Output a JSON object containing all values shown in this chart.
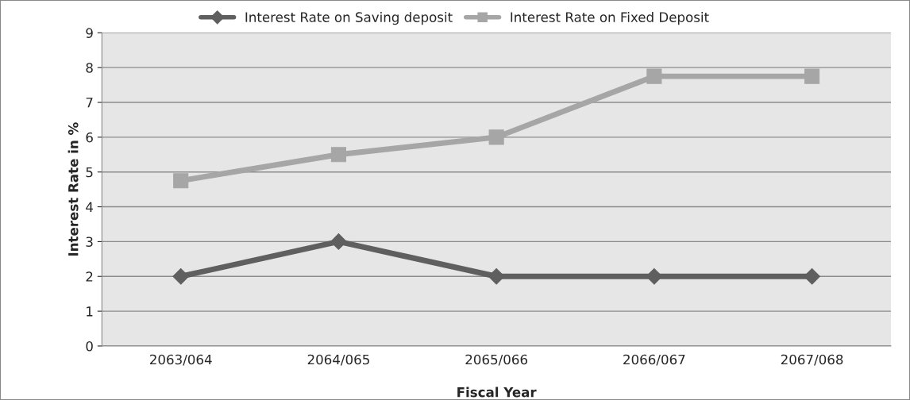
{
  "chart_data": {
    "type": "line",
    "xlabel": "Fiscal Year",
    "ylabel": "Interest Rate in %",
    "categories": [
      "2063/064",
      "2064/065",
      "2065/066",
      "2066/067",
      "2067/068"
    ],
    "series": [
      {
        "name": "Interest Rate on Saving deposit",
        "color": "#5f5f5f",
        "marker": "diamond",
        "values": [
          2,
          3,
          2,
          2,
          2
        ]
      },
      {
        "name": "Interest Rate on Fixed Deposit",
        "color": "#a6a6a6",
        "marker": "square",
        "values": [
          4.75,
          5.5,
          6,
          7.75,
          7.75
        ]
      }
    ],
    "ylim": [
      0,
      9
    ],
    "yticks": [
      0,
      1,
      2,
      3,
      4,
      5,
      6,
      7,
      8,
      9
    ],
    "grid": "y",
    "legend": "top",
    "line_style": "solid"
  }
}
